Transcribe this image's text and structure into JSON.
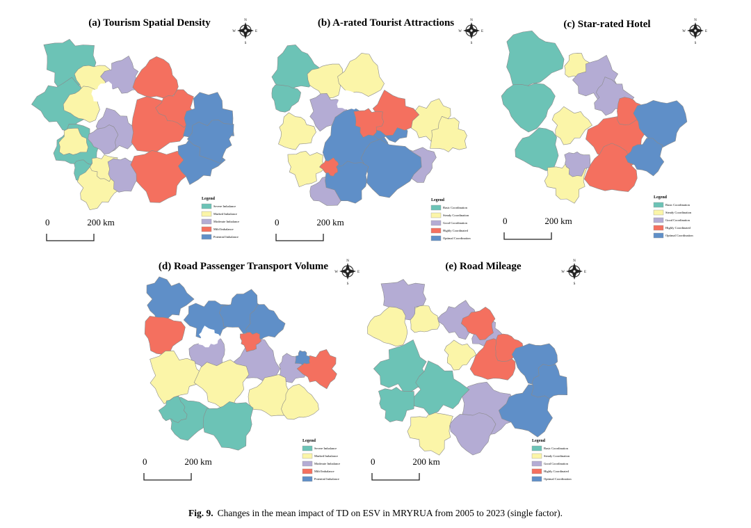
{
  "maps": [
    {
      "title": "(a) Tourism Spatial Density",
      "compass": {
        "n": "N",
        "e": "E",
        "s": "S",
        "w": "W"
      },
      "legend": {
        "title": "Legend",
        "items": [
          {
            "label": "Severe Imbalance",
            "color": "#6cc3b6"
          },
          {
            "label": "Marked Imbalance",
            "color": "#fbf5a8"
          },
          {
            "label": "Moderate Imbalance",
            "color": "#b4acd4"
          },
          {
            "label": "Mild Imbalance",
            "color": "#f4705f"
          },
          {
            "label": "Potential Imbalance",
            "color": "#5f8fc8"
          }
        ]
      },
      "scale": {
        "start": "0",
        "end": "200 km"
      }
    },
    {
      "title": "(b) A-rated Tourist Attractions",
      "compass": {
        "n": "N",
        "e": "E",
        "s": "S",
        "w": "W"
      },
      "legend": {
        "title": "Legend",
        "items": [
          {
            "label": "Basic Coordination",
            "color": "#6cc3b6"
          },
          {
            "label": "Steady Coordination",
            "color": "#fbf5a8"
          },
          {
            "label": "Good Coordination",
            "color": "#b4acd4"
          },
          {
            "label": "Highly Coordinated",
            "color": "#f4705f"
          },
          {
            "label": "Optimal Coordination",
            "color": "#5f8fc8"
          }
        ]
      },
      "scale": {
        "start": "0",
        "end": "200 km"
      }
    },
    {
      "title": "(c) Star-rated Hotel",
      "compass": {
        "n": "N",
        "e": "E",
        "s": "S",
        "w": "W"
      },
      "legend": {
        "title": "Legend",
        "items": [
          {
            "label": "Basic Coordination",
            "color": "#6cc3b6"
          },
          {
            "label": "Steady Coordination",
            "color": "#fbf5a8"
          },
          {
            "label": "Good Coordination",
            "color": "#b4acd4"
          },
          {
            "label": "Highly Coordinated",
            "color": "#f4705f"
          },
          {
            "label": "Optimal Coordination",
            "color": "#5f8fc8"
          }
        ]
      },
      "scale": {
        "start": "0",
        "end": "200 km"
      }
    },
    {
      "title": "(d) Road Passenger Transport Volume",
      "compass": {
        "n": "N",
        "e": "E",
        "s": "S",
        "w": "W"
      },
      "legend": {
        "title": "Legend",
        "items": [
          {
            "label": "Severe Imbalance",
            "color": "#6cc3b6"
          },
          {
            "label": "Marked Imbalance",
            "color": "#fbf5a8"
          },
          {
            "label": "Moderate Imbalance",
            "color": "#b4acd4"
          },
          {
            "label": "Mild Imbalance",
            "color": "#f4705f"
          },
          {
            "label": "Potential Imbalance",
            "color": "#5f8fc8"
          }
        ]
      },
      "scale": {
        "start": "0",
        "end": "200 km"
      }
    },
    {
      "title": "(e) Road Mileage",
      "compass": {
        "n": "N",
        "e": "E",
        "s": "S",
        "w": "W"
      },
      "legend": {
        "title": "Legend",
        "items": [
          {
            "label": "Basic Coordination",
            "color": "#6cc3b6"
          },
          {
            "label": "Steady Coordination",
            "color": "#fbf5a8"
          },
          {
            "label": "Good Coordination",
            "color": "#b4acd4"
          },
          {
            "label": "Highly Coordinated",
            "color": "#f4705f"
          },
          {
            "label": "Optimal Coordination",
            "color": "#5f8fc8"
          }
        ]
      },
      "scale": {
        "start": "0",
        "end": "200 km"
      }
    }
  ],
  "caption": {
    "label": "Fig. 9.",
    "text": "Changes in the mean impact of TD on ESV in MRYRUA from 2005 to 2023 (single factor)."
  }
}
